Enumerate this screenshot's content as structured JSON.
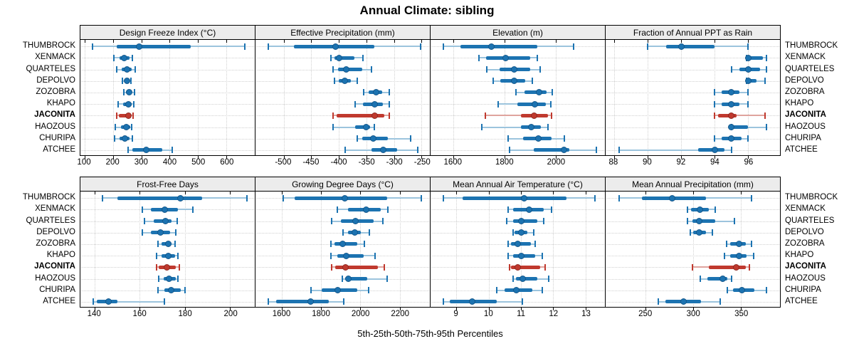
{
  "title": "Annual Climate: sibling",
  "caption": "5th-25th-50th-75th-95th Percentiles",
  "percentile_labels": [
    "5th",
    "25th",
    "50th",
    "75th",
    "95th"
  ],
  "sites": [
    "THUMBROCK",
    "XENMACK",
    "QUARTELES",
    "DEPOLVO",
    "ZOZOBRA",
    "KHAPO",
    "JACONITA",
    "HAOZOUS",
    "CHURIPA",
    "ATCHEE"
  ],
  "highlight_site": "JACONITA",
  "colors": {
    "primary": "#1c73b1",
    "primary_light": "#9cc4dd",
    "primary_edge": "#15578a",
    "highlight": "#c0392e",
    "highlight_light": "#dfa49e",
    "highlight_edge": "#8e2a22",
    "grid": "#d0d0d0",
    "strip_bg": "#ececec",
    "border": "#000000"
  },
  "chart_data": [
    {
      "type": "dotplot-percentiles",
      "title": "Design Freeze Index (°C)",
      "grid_row": 0,
      "grid_col": 0,
      "xlim": [
        85,
        700
      ],
      "xticks": [
        100,
        200,
        300,
        400,
        500,
        600
      ],
      "series": [
        {
          "site": "THUMBROCK",
          "percentiles": [
            128,
            213,
            293,
            473,
            665
          ]
        },
        {
          "site": "XENMACK",
          "percentiles": [
            204,
            222,
            240,
            258,
            268
          ]
        },
        {
          "site": "QUARTELES",
          "percentiles": [
            214,
            231,
            249,
            266,
            278
          ]
        },
        {
          "site": "DEPOLVO",
          "percentiles": [
            233,
            240,
            249,
            258,
            264
          ]
        },
        {
          "site": "ZOZOBRA",
          "percentiles": [
            237,
            246,
            258,
            267,
            275
          ]
        },
        {
          "site": "KHAPO",
          "percentiles": [
            218,
            235,
            254,
            267,
            274
          ]
        },
        {
          "site": "JACONITA",
          "percentiles": [
            212,
            220,
            255,
            262,
            272
          ]
        },
        {
          "site": "HAOZOUS",
          "percentiles": [
            208,
            229,
            247,
            261,
            266
          ]
        },
        {
          "site": "CHURIPA",
          "percentiles": [
            205,
            222,
            243,
            259,
            268
          ]
        },
        {
          "site": "ATCHEE",
          "percentiles": [
            254,
            268,
            316,
            373,
            408
          ]
        }
      ]
    },
    {
      "type": "dotplot-percentiles",
      "title": "Effective Precipitation (mm)",
      "grid_row": 0,
      "grid_col": 1,
      "xlim": [
        -551,
        -235
      ],
      "xticks": [
        -500,
        -450,
        -400,
        -350,
        -300,
        -250
      ],
      "series": [
        {
          "site": "THUMBROCK",
          "percentiles": [
            -528,
            -481,
            -406,
            -335,
            -252
          ]
        },
        {
          "site": "XENMACK",
          "percentiles": [
            -414,
            -408,
            -400,
            -372,
            -356
          ]
        },
        {
          "site": "QUARTELES",
          "percentiles": [
            -410,
            -401,
            -386,
            -358,
            -341
          ]
        },
        {
          "site": "DEPOLVO",
          "percentiles": [
            -408,
            -400,
            -389,
            -378,
            -367
          ]
        },
        {
          "site": "ZOZOBRA",
          "percentiles": [
            -355,
            -346,
            -332,
            -321,
            -309
          ]
        },
        {
          "site": "KHAPO",
          "percentiles": [
            -371,
            -356,
            -335,
            -320,
            -309
          ]
        },
        {
          "site": "JACONITA",
          "percentiles": [
            -410,
            -404,
            -335,
            -318,
            -308
          ]
        },
        {
          "site": "HAOZOUS",
          "percentiles": [
            -410,
            -371,
            -351,
            -343,
            -336
          ]
        },
        {
          "site": "CHURIPA",
          "percentiles": [
            -366,
            -357,
            -337,
            -311,
            -270
          ]
        },
        {
          "site": "ATCHEE",
          "percentiles": [
            -388,
            -341,
            -320,
            -294,
            -257
          ]
        }
      ]
    },
    {
      "type": "dotplot-percentiles",
      "title": "Elevation (m)",
      "grid_row": 0,
      "grid_col": 2,
      "xlim": [
        1511,
        2192
      ],
      "xticks": [
        1600,
        1800,
        2000
      ],
      "series": [
        {
          "site": "THUMBROCK",
          "percentiles": [
            1562,
            1627,
            1750,
            1928,
            2071
          ]
        },
        {
          "site": "XENMACK",
          "percentiles": [
            1701,
            1729,
            1803,
            1900,
            1928
          ]
        },
        {
          "site": "QUARTELES",
          "percentiles": [
            1731,
            1780,
            1837,
            1900,
            1940
          ]
        },
        {
          "site": "DEPOLVO",
          "percentiles": [
            1755,
            1784,
            1837,
            1881,
            1909
          ]
        },
        {
          "site": "ZOZOBRA",
          "percentiles": [
            1844,
            1877,
            1935,
            1965,
            1985
          ]
        },
        {
          "site": "KHAPO",
          "percentiles": [
            1775,
            1849,
            1917,
            1960,
            1981
          ]
        },
        {
          "site": "JACONITA",
          "percentiles": [
            1726,
            1863,
            1916,
            1969,
            1983
          ]
        },
        {
          "site": "HAOZOUS",
          "percentiles": [
            1710,
            1863,
            1903,
            1942,
            1969
          ]
        },
        {
          "site": "CHURIPA",
          "percentiles": [
            1814,
            1872,
            1931,
            1983,
            2034
          ]
        },
        {
          "site": "ATCHEE",
          "percentiles": [
            1819,
            1914,
            2031,
            2053,
            2159
          ]
        }
      ]
    },
    {
      "type": "dotplot-percentiles",
      "title": "Fraction of Annual PPT as Rain",
      "grid_row": 0,
      "grid_col": 3,
      "xlim": [
        87.5,
        97.9
      ],
      "xticks": [
        88,
        90,
        92,
        94,
        96
      ],
      "series": [
        {
          "site": "THUMBROCK",
          "percentiles": [
            90,
            91.1,
            92,
            94,
            96
          ]
        },
        {
          "site": "XENMACK",
          "percentiles": [
            95.9,
            96,
            96,
            96.9,
            97.1
          ]
        },
        {
          "site": "QUARTELES",
          "percentiles": [
            95,
            95.5,
            96,
            96.7,
            97.1
          ]
        },
        {
          "site": "DEPOLVO",
          "percentiles": [
            95.9,
            96,
            96,
            96.5,
            97
          ]
        },
        {
          "site": "ZOZOBRA",
          "percentiles": [
            94,
            94.4,
            95,
            95.5,
            96
          ]
        },
        {
          "site": "KHAPO",
          "percentiles": [
            94,
            94.4,
            95,
            95.5,
            96
          ]
        },
        {
          "site": "JACONITA",
          "percentiles": [
            94,
            94.2,
            95,
            95.3,
            97
          ]
        },
        {
          "site": "HAOZOUS",
          "percentiles": [
            95,
            95,
            95,
            96,
            97.1
          ]
        },
        {
          "site": "CHURIPA",
          "percentiles": [
            94,
            94.4,
            95,
            95.6,
            96
          ]
        },
        {
          "site": "ATCHEE",
          "percentiles": [
            88.3,
            93,
            94,
            94.6,
            95
          ]
        }
      ]
    },
    {
      "type": "dotplot-percentiles",
      "title": "Frost-Free Days",
      "grid_row": 1,
      "grid_col": 0,
      "xlim": [
        133.7,
        210.9
      ],
      "xticks": [
        140,
        160,
        180,
        200
      ],
      "series": [
        {
          "site": "THUMBROCK",
          "percentiles": [
            143.5,
            150,
            178,
            187.5,
            207.5
          ]
        },
        {
          "site": "XENMACK",
          "percentiles": [
            161,
            165,
            171,
            177,
            183.5
          ]
        },
        {
          "site": "QUARTELES",
          "percentiles": [
            162,
            166,
            171.5,
            174,
            176.5
          ]
        },
        {
          "site": "DEPOLVO",
          "percentiles": [
            161,
            165,
            169,
            173.5,
            176
          ]
        },
        {
          "site": "ZOZOBRA",
          "percentiles": [
            168,
            169.5,
            172.5,
            174,
            175.5
          ]
        },
        {
          "site": "KHAPO",
          "percentiles": [
            167.5,
            169.5,
            172.5,
            175.5,
            177
          ]
        },
        {
          "site": "JACONITA",
          "percentiles": [
            167.5,
            168.5,
            172,
            176,
            177.5
          ]
        },
        {
          "site": "HAOZOUS",
          "percentiles": [
            168.5,
            170.5,
            173,
            176,
            177
          ]
        },
        {
          "site": "CHURIPA",
          "percentiles": [
            168,
            171,
            174,
            178,
            180
          ]
        },
        {
          "site": "ATCHEE",
          "percentiles": [
            139.5,
            141,
            146,
            150,
            171
          ]
        }
      ]
    },
    {
      "type": "dotplot-percentiles",
      "title": "Growing Degree Days (°C)",
      "grid_row": 1,
      "grid_col": 1,
      "xlim": [
        1465,
        2354
      ],
      "xticks": [
        1600,
        1800,
        2000,
        2200
      ],
      "series": [
        {
          "site": "THUMBROCK",
          "percentiles": [
            1606,
            1663,
            1921,
            2136,
            2312
          ]
        },
        {
          "site": "XENMACK",
          "percentiles": [
            1881,
            1936,
            2029,
            2105,
            2139
          ]
        },
        {
          "site": "QUARTELES",
          "percentiles": [
            1853,
            1899,
            1975,
            2069,
            2115
          ]
        },
        {
          "site": "DEPOLVO",
          "percentiles": [
            1911,
            1936,
            1972,
            2002,
            2045
          ]
        },
        {
          "site": "ZOZOBRA",
          "percentiles": [
            1851,
            1869,
            1909,
            1984,
            2021
          ]
        },
        {
          "site": "KHAPO",
          "percentiles": [
            1848,
            1881,
            1926,
            2015,
            2073
          ]
        },
        {
          "site": "JACONITA",
          "percentiles": [
            1853,
            1870,
            1924,
            2090,
            2120
          ]
        },
        {
          "site": "HAOZOUS",
          "percentiles": [
            1909,
            1921,
            1938,
            2033,
            2136
          ]
        },
        {
          "site": "CHURIPA",
          "percentiles": [
            1748,
            1802,
            1885,
            1984,
            2042
          ]
        },
        {
          "site": "ATCHEE",
          "percentiles": [
            1530,
            1572,
            1745,
            1839,
            1914
          ]
        }
      ]
    },
    {
      "type": "dotplot-percentiles",
      "title": "Mean Annual Air Temperature (°C)",
      "grid_row": 1,
      "grid_col": 2,
      "xlim": [
        8.2,
        13.6
      ],
      "xticks": [
        9,
        10,
        11,
        12,
        13
      ],
      "series": [
        {
          "site": "THUMBROCK",
          "percentiles": [
            8.6,
            9.2,
            11.1,
            12.4,
            13.3
          ]
        },
        {
          "site": "XENMACK",
          "percentiles": [
            10.6,
            10.75,
            11.25,
            11.7,
            11.95
          ]
        },
        {
          "site": "QUARTELES",
          "percentiles": [
            10.55,
            10.75,
            11.0,
            11.5,
            11.7
          ]
        },
        {
          "site": "DEPOLVO",
          "percentiles": [
            10.75,
            10.8,
            11.0,
            11.2,
            11.4
          ]
        },
        {
          "site": "ZOZOBRA",
          "percentiles": [
            10.6,
            10.7,
            10.9,
            11.3,
            11.45
          ]
        },
        {
          "site": "KHAPO",
          "percentiles": [
            10.6,
            10.75,
            11.0,
            11.45,
            11.65
          ]
        },
        {
          "site": "JACONITA",
          "percentiles": [
            10.65,
            10.7,
            10.9,
            11.6,
            11.75
          ]
        },
        {
          "site": "HAOZOUS",
          "percentiles": [
            10.75,
            10.85,
            11.05,
            11.5,
            11.85
          ]
        },
        {
          "site": "CHURIPA",
          "percentiles": [
            10.25,
            10.5,
            10.85,
            11.35,
            11.65
          ]
        },
        {
          "site": "ATCHEE",
          "percentiles": [
            8.6,
            8.8,
            9.5,
            10.25,
            11.05
          ]
        }
      ]
    },
    {
      "type": "dotplot-percentiles",
      "title": "Mean Annual Precipitation (mm)",
      "grid_row": 1,
      "grid_col": 3,
      "xlim": [
        208,
        391
      ],
      "xticks": [
        250,
        300,
        350
      ],
      "series": [
        {
          "site": "THUMBROCK",
          "percentiles": [
            222,
            246,
            278,
            313,
            361
          ]
        },
        {
          "site": "XENMACK",
          "percentiles": [
            294,
            298,
            307,
            316,
            323
          ]
        },
        {
          "site": "QUARTELES",
          "percentiles": [
            294,
            299,
            306,
            323,
            343
          ]
        },
        {
          "site": "DEPOLVO",
          "percentiles": [
            297,
            300,
            306,
            313,
            320
          ]
        },
        {
          "site": "ZOZOBRA",
          "percentiles": [
            335,
            339,
            348,
            355,
            361
          ]
        },
        {
          "site": "KHAPO",
          "percentiles": [
            333,
            339,
            348,
            356,
            363
          ]
        },
        {
          "site": "JACONITA",
          "percentiles": [
            299,
            316,
            345,
            355,
            359
          ]
        },
        {
          "site": "HAOZOUS",
          "percentiles": [
            307,
            315,
            331,
            336,
            340
          ]
        },
        {
          "site": "CHURIPA",
          "percentiles": [
            336,
            342,
            351,
            364,
            377
          ]
        },
        {
          "site": "ATCHEE",
          "percentiles": [
            263,
            271,
            290,
            308,
            328
          ]
        }
      ]
    }
  ]
}
